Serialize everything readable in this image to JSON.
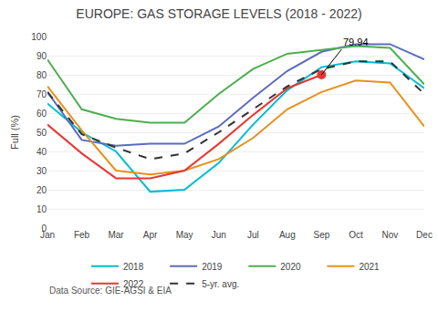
{
  "chart_data": {
    "type": "line",
    "title": "EUROPE: GAS STORAGE LEVELS (2018 - 2022)",
    "y_label": "Full (%)",
    "source": "Data Source: GIE-AGSI & EIA",
    "categories": [
      "Jan",
      "Feb",
      "Mar",
      "Apr",
      "May",
      "Jun",
      "Jul",
      "Aug",
      "Sep",
      "Oct",
      "Nov",
      "Dec"
    ],
    "series": [
      {
        "name": "2018",
        "color": "#00bcd4",
        "values": [
          65,
          50,
          40,
          19,
          20,
          34,
          54,
          72,
          84,
          87,
          86,
          73
        ]
      },
      {
        "name": "2019",
        "color": "#5b6cbf",
        "values": [
          71,
          46,
          43,
          44,
          44,
          53,
          68,
          82,
          92,
          96,
          96,
          88
        ]
      },
      {
        "name": "2020",
        "color": "#4caf50",
        "values": [
          88,
          62,
          57,
          55,
          55,
          70,
          83,
          91,
          93,
          95,
          94,
          75
        ]
      },
      {
        "name": "2021",
        "color": "#e8901a",
        "values": [
          74,
          51,
          30,
          28,
          30,
          36,
          47,
          62,
          71,
          77,
          76,
          53
        ]
      },
      {
        "name": "2022",
        "color": "#e53935",
        "values": [
          54,
          39,
          26,
          26,
          30,
          44,
          59,
          73,
          80,
          null,
          null,
          null
        ]
      },
      {
        "name": "5-yr. avg.",
        "color": "#333333",
        "line_style": "dashed",
        "values": [
          71,
          49,
          42,
          36,
          39,
          50,
          62,
          74,
          83,
          87,
          87,
          70
        ]
      }
    ],
    "annotations": [
      {
        "x": "Sep",
        "y": 80,
        "text": "79.94",
        "color": "#e53935"
      }
    ],
    "ylim": [
      0,
      100
    ],
    "yticks": [
      0,
      10,
      20,
      30,
      40,
      50,
      60,
      70,
      80,
      90,
      100
    ],
    "grid": true,
    "legend": "bottom"
  }
}
